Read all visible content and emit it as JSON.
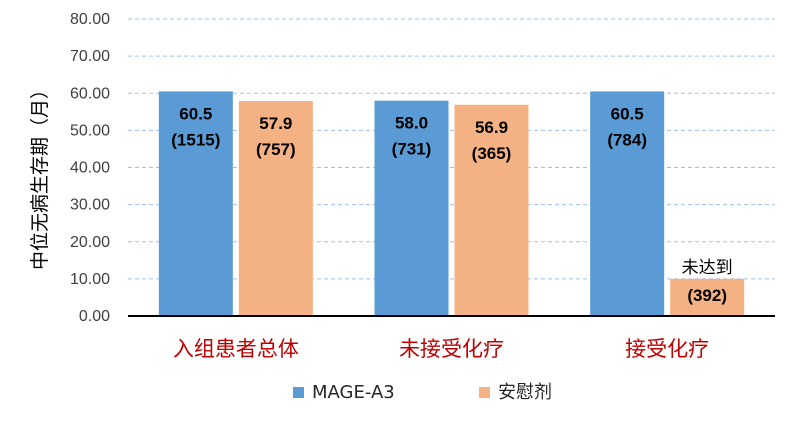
{
  "chart_data": {
    "type": "bar",
    "categories": [
      "入组患者总体",
      "未接受化疗",
      "接受化疗"
    ],
    "series": [
      {
        "name": "MAGE-A3",
        "color": "#5b9bd5",
        "values": [
          60.5,
          58.0,
          60.5
        ],
        "labels": [
          [
            "60.5",
            "(1515)"
          ],
          [
            "58.0",
            "(731)"
          ],
          [
            "60.5",
            "(784)"
          ]
        ]
      },
      {
        "name": "安慰剂",
        "color": "#f4b183",
        "values": [
          57.9,
          56.9,
          10.0
        ],
        "labels": [
          [
            "57.9",
            "(757)"
          ],
          [
            "56.9",
            "(365)"
          ],
          [
            "未达到",
            "(392)"
          ]
        ]
      }
    ],
    "ylabel": "中位无病生存期（月）",
    "xlabel": "",
    "ylim": [
      0,
      80
    ],
    "yticks": [
      "0.00",
      "10.00",
      "20.00",
      "30.00",
      "40.00",
      "50.00",
      "60.00",
      "70.00",
      "80.00"
    ],
    "grid": true,
    "legend": "bottom"
  }
}
